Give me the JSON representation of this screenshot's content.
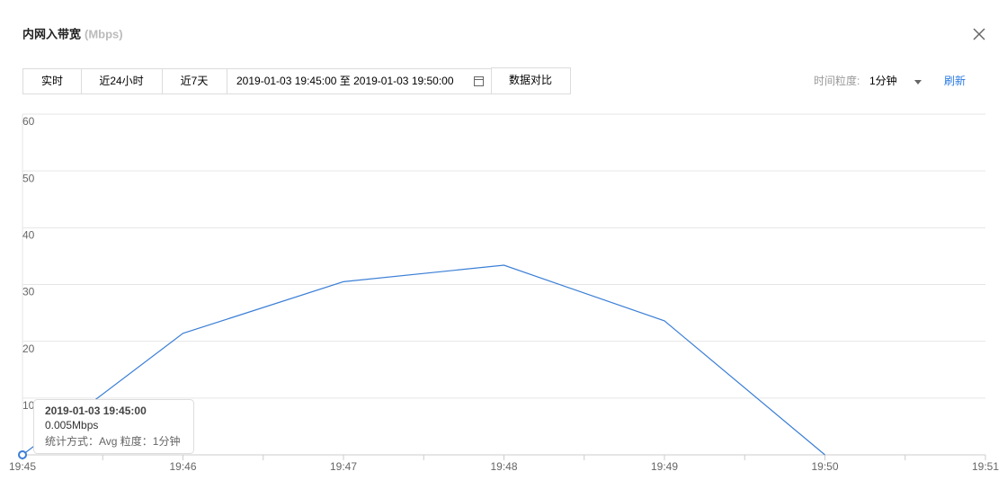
{
  "toolbar": {
    "buttons": [
      "实时",
      "近24小时",
      "近7天"
    ],
    "date_range": "2019-01-03 19:45:00 至 2019-01-03 19:50:00",
    "compare": "数据对比",
    "granularity_label": "时间粒度:",
    "granularity": "1分钟",
    "refresh": "刷新"
  },
  "chart_data": {
    "type": "line",
    "title": "内网入带宽",
    "unit": "(Mbps)",
    "categories": [
      "19:45",
      "19:46",
      "19:47",
      "19:48",
      "19:49",
      "19:50",
      "19:51"
    ],
    "series": [
      {
        "color": "#3b7fd6",
        "values": [
          0.005,
          21.4,
          30.5,
          33.4,
          23.6,
          0,
          null
        ]
      }
    ],
    "ylim": [
      0,
      60
    ],
    "yticks": [
      10,
      20,
      30,
      40,
      50,
      60
    ],
    "grid": true,
    "tooltip": {
      "title": "2019-01-03 19:45:00",
      "value": "0.005Mbps",
      "note": "统计方式：Avg 粒度：1分钟"
    }
  }
}
